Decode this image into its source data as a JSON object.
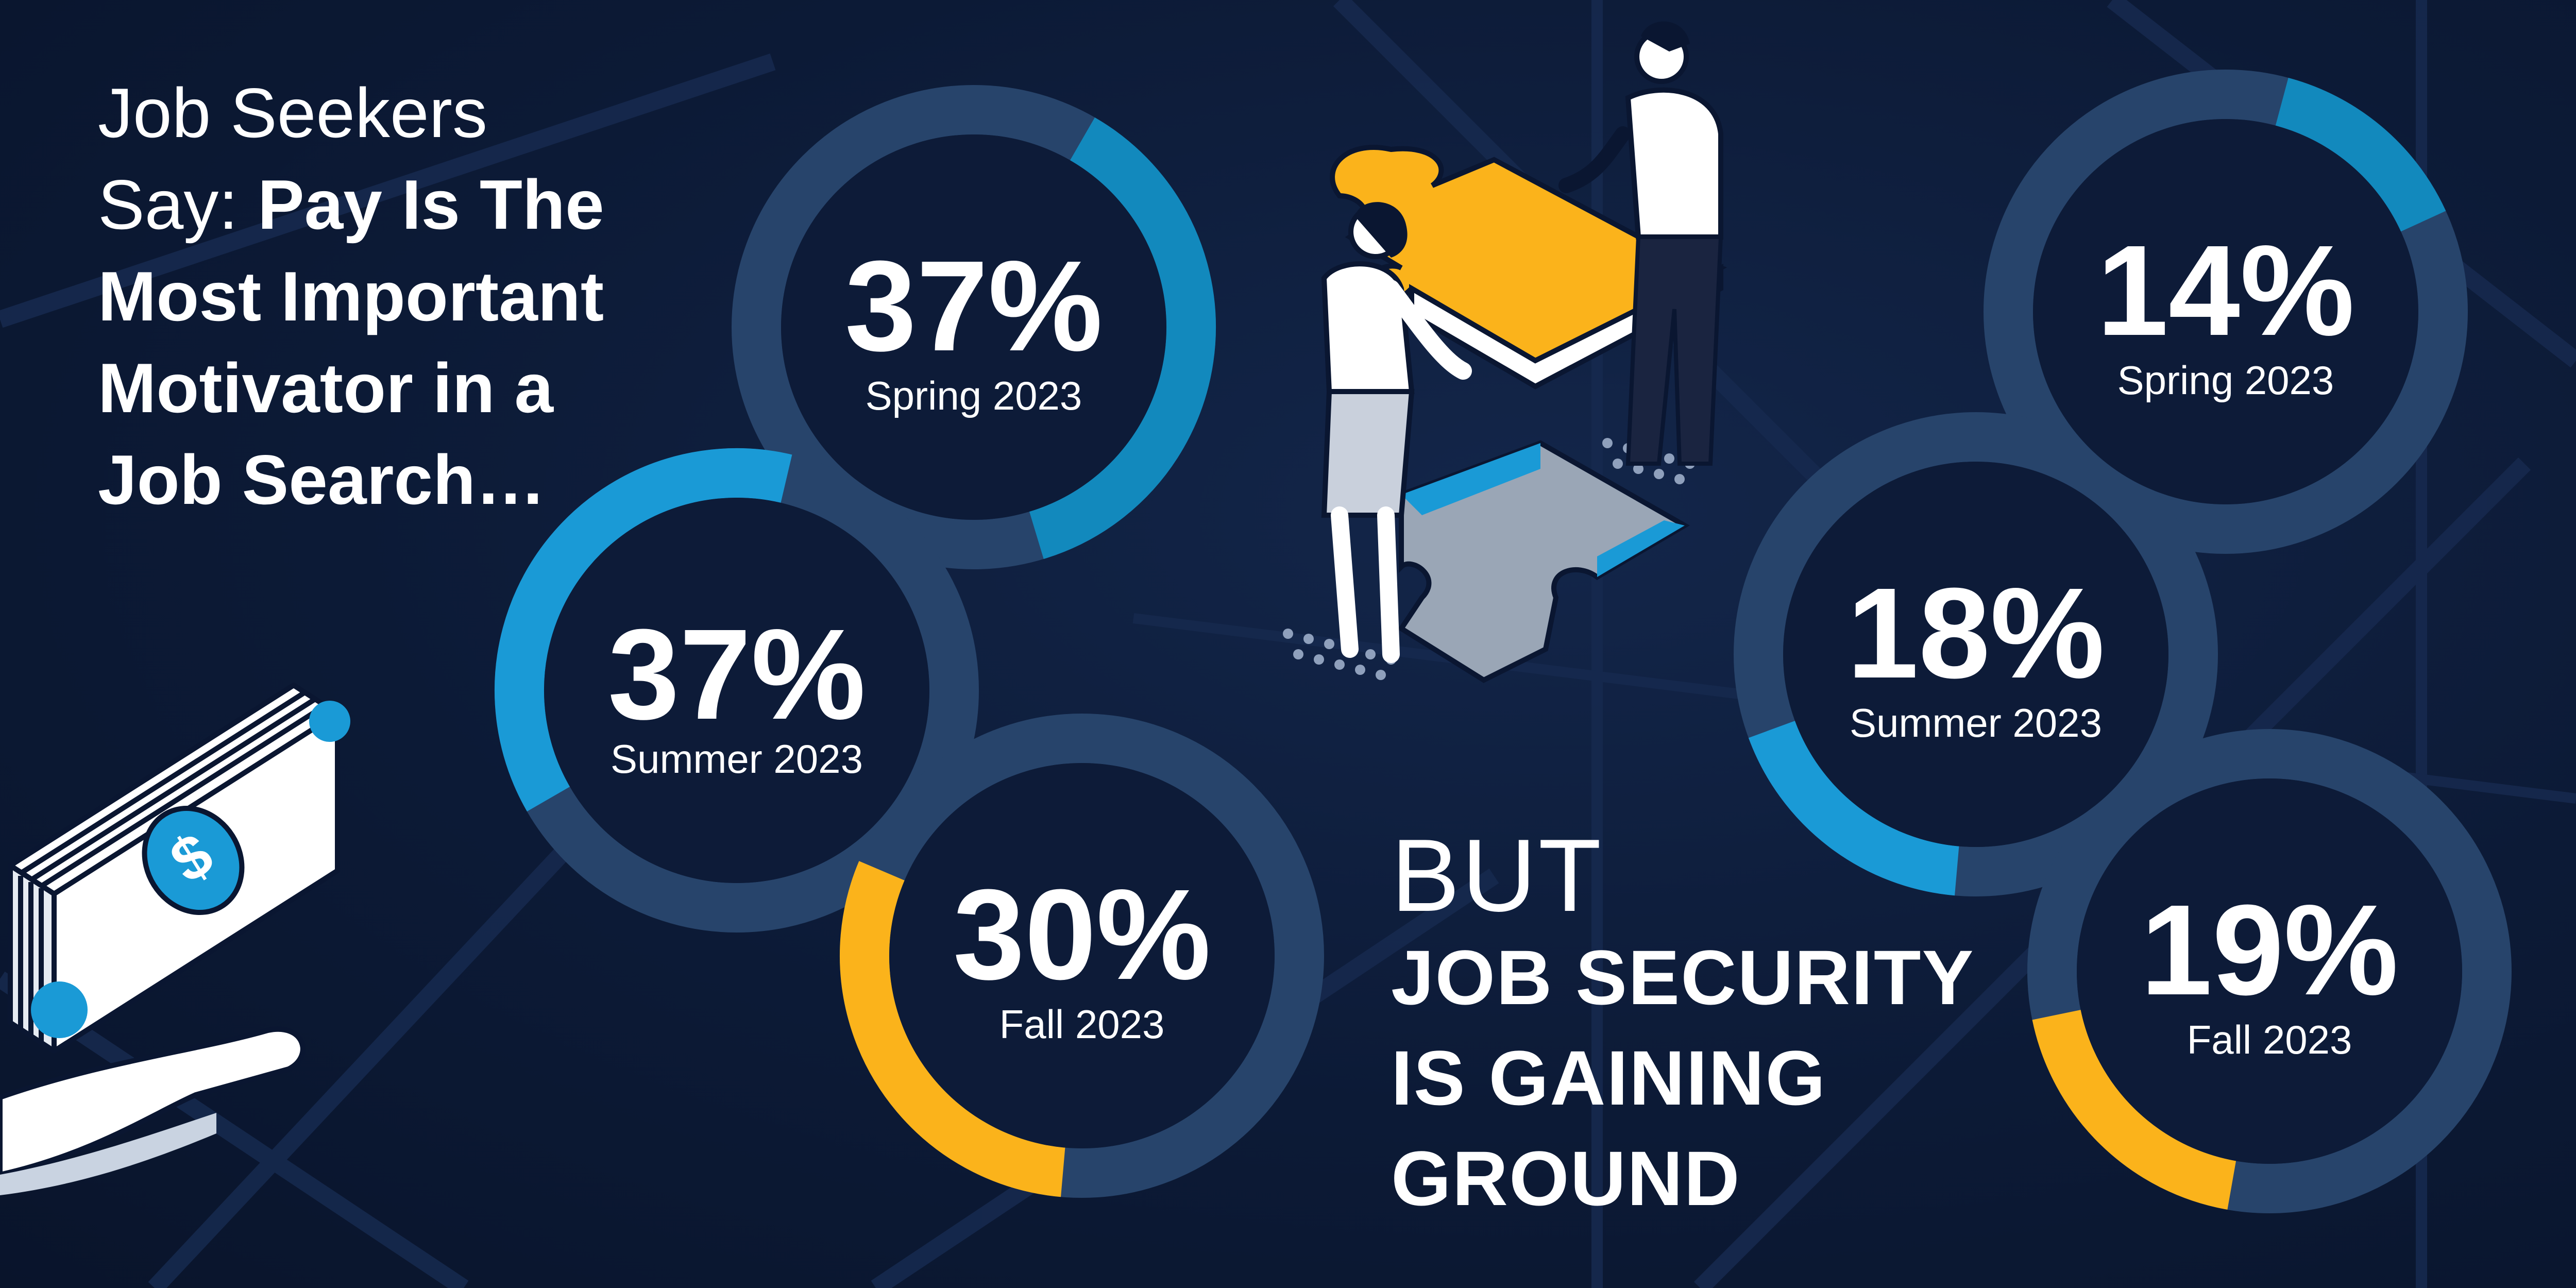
{
  "headline": {
    "line1": "Job Seekers",
    "line2_light": "Say: ",
    "line2_bold": "Pay Is The",
    "line3": "Most Important",
    "line4": "Motivator in a",
    "line5": "Job Search…"
  },
  "contrast": {
    "word": "BUT",
    "line1": "JOB SECURITY",
    "line2": "IS GAINING",
    "line3": "GROUND"
  },
  "colors": {
    "background": "#0c1a36",
    "ring_track": "#27446b",
    "ring_inner": "#0d1b38",
    "spring": "#1289bd",
    "summer": "#1a9ad6",
    "fall": "#fbb31b"
  },
  "icons": [
    "money-in-hand-icon",
    "puzzle-people-illustration"
  ],
  "chart_data": [
    {
      "type": "pie",
      "style": "donut",
      "topic": "Pay",
      "categories": [
        "Spring 2023",
        "Summer 2023",
        "Fall 2023"
      ],
      "values": [
        37,
        37,
        30
      ],
      "labels": [
        "37%",
        "37%",
        "30%"
      ]
    },
    {
      "type": "pie",
      "style": "donut",
      "topic": "Job Security",
      "categories": [
        "Spring 2023",
        "Summer 2023",
        "Fall 2023"
      ],
      "values": [
        14,
        18,
        19
      ],
      "labels": [
        "14%",
        "18%",
        "19%"
      ]
    }
  ]
}
